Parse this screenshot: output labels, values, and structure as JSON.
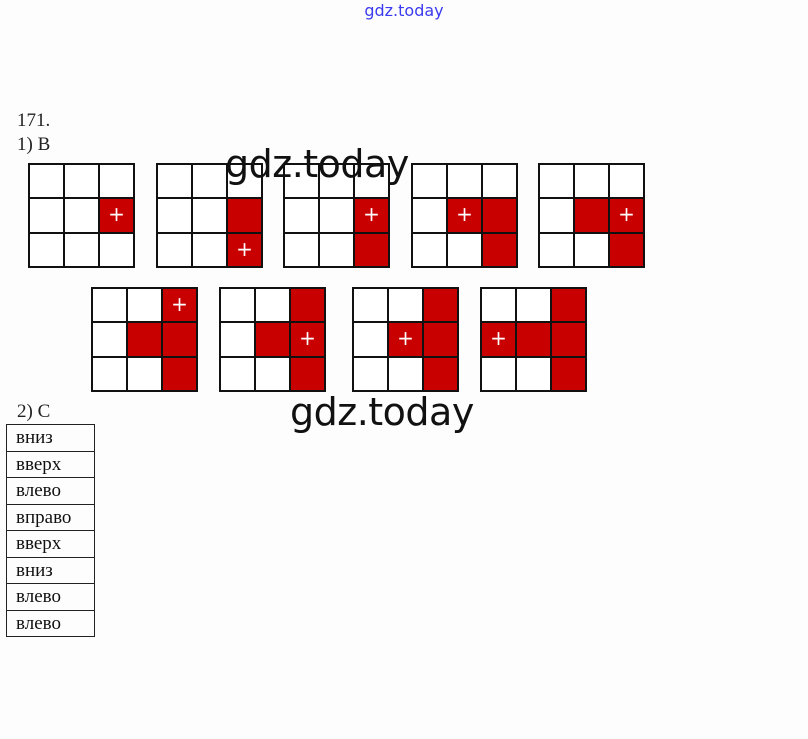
{
  "site_title": "gdz.today",
  "watermark": "gdz.today",
  "problem_number": "171.",
  "part1_label": "1) В",
  "part2_label": "2) С",
  "colors": {
    "filled": "#c80000",
    "site_title": "#3a3af0"
  },
  "grids": [
    {
      "filled": [
        [
          1,
          2
        ]
      ],
      "plus": [
        1,
        2
      ]
    },
    {
      "filled": [
        [
          1,
          2
        ],
        [
          2,
          2
        ]
      ],
      "plus": [
        2,
        2
      ]
    },
    {
      "filled": [
        [
          1,
          2
        ],
        [
          2,
          2
        ]
      ],
      "plus": [
        1,
        2
      ]
    },
    {
      "filled": [
        [
          1,
          1
        ],
        [
          1,
          2
        ],
        [
          2,
          2
        ]
      ],
      "plus": [
        1,
        1
      ]
    },
    {
      "filled": [
        [
          1,
          1
        ],
        [
          1,
          2
        ],
        [
          2,
          2
        ]
      ],
      "plus": [
        1,
        2
      ]
    },
    {
      "filled": [
        [
          0,
          2
        ],
        [
          1,
          1
        ],
        [
          1,
          2
        ],
        [
          2,
          2
        ]
      ],
      "plus": [
        0,
        2
      ]
    },
    {
      "filled": [
        [
          0,
          2
        ],
        [
          1,
          1
        ],
        [
          1,
          2
        ],
        [
          2,
          2
        ]
      ],
      "plus": [
        1,
        2
      ]
    },
    {
      "filled": [
        [
          0,
          2
        ],
        [
          1,
          1
        ],
        [
          1,
          2
        ],
        [
          2,
          2
        ]
      ],
      "plus": [
        1,
        1
      ]
    },
    {
      "filled": [
        [
          0,
          2
        ],
        [
          1,
          0
        ],
        [
          1,
          1
        ],
        [
          1,
          2
        ],
        [
          2,
          2
        ]
      ],
      "plus": [
        1,
        0
      ]
    }
  ],
  "moves": [
    "вниз",
    "вверх",
    "влево",
    "вправо",
    "вверх",
    "вниз",
    "влево",
    "влево"
  ]
}
